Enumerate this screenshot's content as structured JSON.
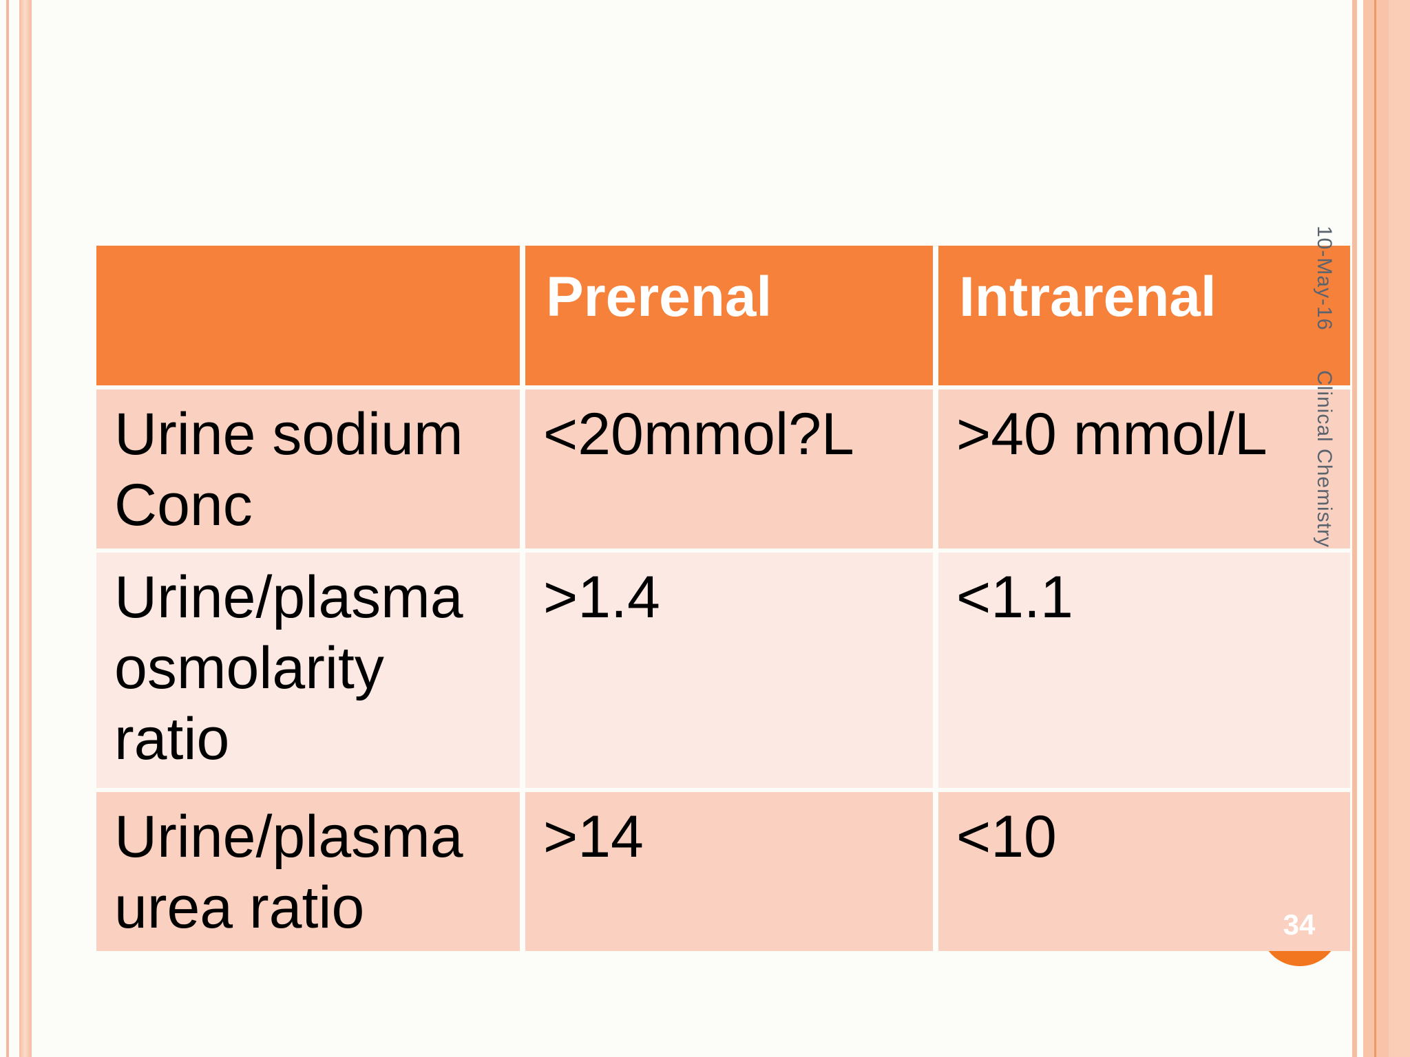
{
  "slide": {
    "page_number": "34",
    "sidebar": {
      "date": "10-May-16",
      "course_name": "Clinical Chemistry"
    },
    "colors": {
      "header_orange": "#F5813B",
      "row_pink_dark": "#FAD1C1",
      "row_pink_light": "#FCE9E4",
      "border_salmon": "#F9C3AA",
      "border_accent_line": "#EC9964",
      "page_circle_orange": "#F1761F",
      "sidebar_text": "#5B636E",
      "header_text": "#FFFFFF",
      "cell_text": "#000000"
    }
  },
  "table": {
    "header": {
      "col1": "",
      "col2": "Prerenal",
      "col3": "Intrarenal"
    },
    "rows": [
      {
        "label": "Urine sodium Conc",
        "prerenal": "<20mmol?L",
        "intrarenal": ">40 mmol/L"
      },
      {
        "label": "Urine/plasma osmolarity ratio",
        "prerenal": ">1.4",
        "intrarenal": "<1.1"
      },
      {
        "label": "Urine/plasma urea ratio",
        "prerenal": ">14",
        "intrarenal": "<10"
      }
    ]
  }
}
